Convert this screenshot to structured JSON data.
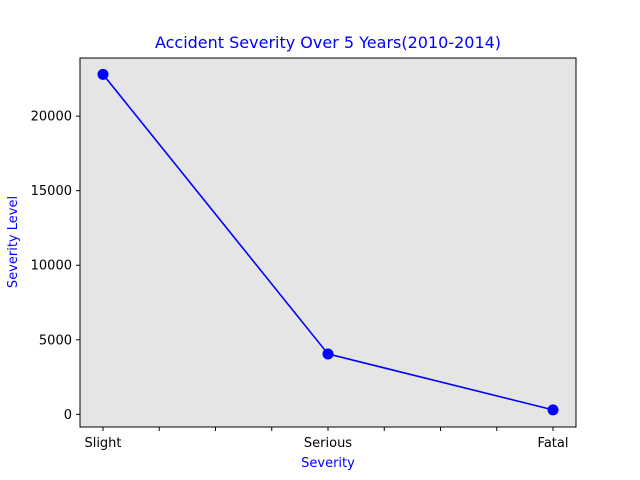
{
  "chart_data": {
    "type": "line",
    "title": "Accident Severity Over 5 Years(2010-2014)",
    "xlabel": "Severity",
    "ylabel": "Severity Level",
    "categories": [
      "Slight",
      "Serious",
      "Fatal"
    ],
    "series": [
      {
        "values": [
          22800,
          4050,
          300
        ],
        "color": "#0000ff",
        "marker": "circle"
      }
    ],
    "ylim": [
      -850,
      23900
    ],
    "yticks": [
      0,
      5000,
      10000,
      15000,
      20000
    ],
    "x_minor_ticks_between_categories": 3,
    "grid": false,
    "legend": "none",
    "colors": {
      "text_accent": "#0000ff",
      "plot_background": "#e5e5e5",
      "line": "#0000ff"
    }
  }
}
